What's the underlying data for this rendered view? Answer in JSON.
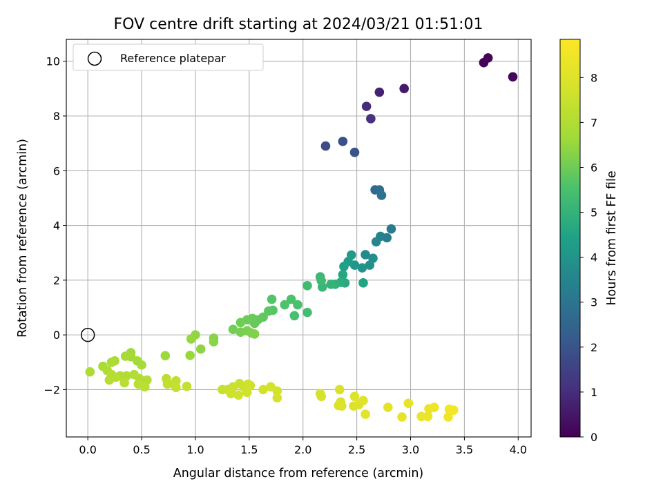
{
  "chart_data": {
    "type": "scatter",
    "title": "FOV centre drift starting at 2024/03/21 01:51:01",
    "xlabel": "Angular distance from reference (arcmin)",
    "ylabel": "Rotation from reference (arcmin)",
    "xlim": [
      -0.2,
      4.12
    ],
    "ylim": [
      -3.73,
      10.8
    ],
    "x_ticks": [
      0.0,
      0.5,
      1.0,
      1.5,
      2.0,
      2.5,
      3.0,
      3.5,
      4.0
    ],
    "x_tick_labels": [
      "0.0",
      "0.5",
      "1.0",
      "1.5",
      "2.0",
      "2.5",
      "3.0",
      "3.5",
      "4.0"
    ],
    "y_ticks": [
      -2,
      0,
      2,
      4,
      6,
      8,
      10
    ],
    "y_tick_labels": [
      "−2",
      "0",
      "2",
      "4",
      "6",
      "8",
      "10"
    ],
    "grid": true,
    "legend": {
      "position": "top-left",
      "entries": [
        "Reference platepar"
      ]
    },
    "reference_point": {
      "x": 0.0,
      "y": 0.0
    },
    "colorbar": {
      "label": "Hours from first FF file",
      "colormap": "viridis",
      "range": [
        0,
        8.85
      ],
      "ticks": [
        0,
        1,
        2,
        3,
        4,
        5,
        6,
        7,
        8
      ],
      "tick_labels": [
        "0",
        "1",
        "2",
        "3",
        "4",
        "5",
        "6",
        "7",
        "8"
      ]
    },
    "points": [
      [
        3.68,
        9.95,
        0.05
      ],
      [
        3.72,
        10.12,
        0.1
      ],
      [
        3.95,
        9.43,
        0.15
      ],
      [
        2.94,
        9.0,
        0.6
      ],
      [
        2.71,
        8.87,
        0.75
      ],
      [
        2.59,
        8.35,
        1.0
      ],
      [
        2.63,
        7.9,
        1.1
      ],
      [
        2.21,
        6.9,
        1.8
      ],
      [
        2.37,
        7.07,
        1.9
      ],
      [
        2.48,
        6.67,
        2.0
      ],
      [
        2.67,
        5.3,
        2.7
      ],
      [
        2.71,
        5.3,
        2.8
      ],
      [
        2.73,
        5.1,
        2.9
      ],
      [
        2.82,
        3.87,
        3.2
      ],
      [
        2.78,
        3.55,
        3.3
      ],
      [
        2.72,
        3.6,
        3.4
      ],
      [
        2.68,
        3.4,
        3.5
      ],
      [
        2.58,
        2.93,
        3.7
      ],
      [
        2.65,
        2.8,
        3.8
      ],
      [
        2.62,
        2.55,
        3.9
      ],
      [
        2.55,
        2.45,
        4.0
      ],
      [
        2.48,
        2.55,
        4.1
      ],
      [
        2.45,
        2.92,
        4.2
      ],
      [
        2.42,
        2.68,
        4.3
      ],
      [
        2.38,
        2.5,
        4.4
      ],
      [
        2.56,
        1.9,
        4.5
      ],
      [
        2.37,
        2.2,
        4.6
      ],
      [
        2.39,
        1.9,
        4.7
      ],
      [
        2.35,
        1.92,
        4.8
      ],
      [
        2.3,
        1.85,
        4.9
      ],
      [
        2.26,
        1.85,
        5.0
      ],
      [
        2.18,
        1.75,
        5.1
      ],
      [
        2.16,
        2.12,
        5.2
      ],
      [
        2.17,
        1.98,
        5.25
      ],
      [
        2.04,
        1.8,
        5.3
      ],
      [
        2.04,
        0.82,
        5.4
      ],
      [
        1.92,
        0.7,
        5.45
      ],
      [
        1.95,
        1.1,
        5.5
      ],
      [
        1.89,
        1.3,
        5.55
      ],
      [
        1.83,
        1.1,
        5.6
      ],
      [
        1.71,
        1.3,
        5.65
      ],
      [
        1.72,
        0.9,
        5.7
      ],
      [
        1.68,
        0.87,
        5.75
      ],
      [
        1.63,
        0.65,
        5.8
      ],
      [
        1.58,
        0.55,
        5.85
      ],
      [
        1.55,
        0.42,
        5.9
      ],
      [
        1.53,
        0.6,
        5.92
      ],
      [
        1.48,
        0.55,
        5.95
      ],
      [
        1.42,
        0.45,
        6.0
      ],
      [
        1.35,
        0.2,
        6.05
      ],
      [
        1.42,
        0.1,
        6.1
      ],
      [
        1.48,
        0.15,
        6.15
      ],
      [
        1.52,
        0.07,
        6.2
      ],
      [
        1.55,
        0.03,
        6.25
      ],
      [
        1.17,
        -0.12,
        6.3
      ],
      [
        1.17,
        -0.25,
        6.35
      ],
      [
        1.05,
        -0.52,
        6.4
      ],
      [
        1.0,
        0.0,
        6.45
      ],
      [
        0.96,
        -0.15,
        6.5
      ],
      [
        0.95,
        -0.75,
        6.55
      ],
      [
        0.72,
        -0.76,
        6.6
      ],
      [
        0.4,
        -0.65,
        6.65
      ],
      [
        0.4,
        -0.8,
        6.7
      ],
      [
        0.46,
        -0.95,
        6.75
      ],
      [
        0.5,
        -1.1,
        6.78
      ],
      [
        0.35,
        -0.78,
        6.8
      ],
      [
        0.25,
        -0.95,
        6.82
      ],
      [
        0.14,
        -1.15,
        6.85
      ],
      [
        0.02,
        -1.35,
        6.88
      ],
      [
        0.22,
        -1.0,
        6.9
      ],
      [
        0.18,
        -1.3,
        6.92
      ],
      [
        0.3,
        -1.5,
        6.95
      ],
      [
        0.36,
        -1.5,
        6.98
      ],
      [
        0.43,
        -1.45,
        7.0
      ],
      [
        0.48,
        -1.6,
        7.02
      ],
      [
        0.55,
        -1.65,
        7.05
      ],
      [
        0.22,
        -1.45,
        7.08
      ],
      [
        0.26,
        -1.55,
        7.1
      ],
      [
        0.2,
        -1.65,
        7.12
      ],
      [
        0.34,
        -1.75,
        7.15
      ],
      [
        0.47,
        -1.8,
        7.18
      ],
      [
        0.53,
        -1.9,
        7.2
      ],
      [
        0.73,
        -1.6,
        7.25
      ],
      [
        0.8,
        -1.8,
        7.3
      ],
      [
        0.74,
        -1.8,
        7.32
      ],
      [
        0.82,
        -1.68,
        7.35
      ],
      [
        0.92,
        -1.88,
        7.38
      ],
      [
        0.82,
        -1.92,
        7.4
      ],
      [
        1.25,
        -2.0,
        7.45
      ],
      [
        1.3,
        -2.0,
        7.48
      ],
      [
        1.35,
        -1.9,
        7.5
      ],
      [
        1.41,
        -1.78,
        7.52
      ],
      [
        1.45,
        -1.9,
        7.55
      ],
      [
        1.49,
        -1.8,
        7.58
      ],
      [
        1.51,
        -1.85,
        7.6
      ],
      [
        1.33,
        -2.15,
        7.62
      ],
      [
        1.4,
        -2.2,
        7.65
      ],
      [
        1.48,
        -2.1,
        7.68
      ],
      [
        1.63,
        -2.0,
        7.7
      ],
      [
        1.7,
        -1.9,
        7.72
      ],
      [
        1.76,
        -2.05,
        7.75
      ],
      [
        1.76,
        -2.3,
        7.78
      ],
      [
        2.16,
        -2.15,
        7.8
      ],
      [
        2.17,
        -2.25,
        7.82
      ],
      [
        2.34,
        -2.0,
        7.85
      ],
      [
        2.35,
        -2.45,
        7.88
      ],
      [
        2.33,
        -2.58,
        7.9
      ],
      [
        2.36,
        -2.6,
        7.92
      ],
      [
        2.48,
        -2.25,
        7.95
      ],
      [
        2.47,
        -2.6,
        7.98
      ],
      [
        2.52,
        -2.55,
        8.0
      ],
      [
        2.56,
        -2.4,
        8.05
      ],
      [
        2.58,
        -2.9,
        8.1
      ],
      [
        2.79,
        -2.65,
        8.15
      ],
      [
        2.92,
        -3.0,
        8.2
      ],
      [
        2.98,
        -2.5,
        8.25
      ],
      [
        3.1,
        -2.98,
        8.3
      ],
      [
        3.16,
        -2.98,
        8.35
      ],
      [
        3.17,
        -2.7,
        8.4
      ],
      [
        3.22,
        -2.65,
        8.45
      ],
      [
        3.35,
        -3.0,
        8.5
      ],
      [
        3.36,
        -2.72,
        8.55
      ],
      [
        3.4,
        -2.75,
        8.6
      ]
    ]
  }
}
